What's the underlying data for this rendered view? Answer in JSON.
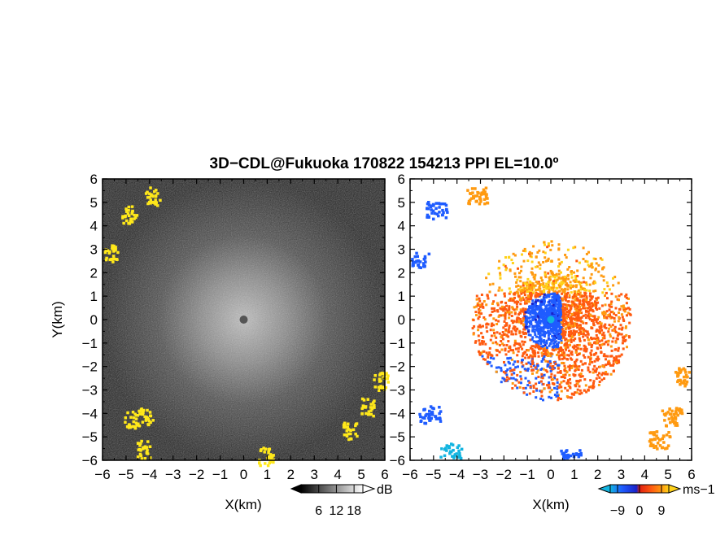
{
  "title": "3D−CDL@Fukuoka 170822 154213 PPI EL=10.0º",
  "chart_data": [
    {
      "type": "heatmap",
      "panel": "left",
      "xlabel": "X(km)",
      "ylabel": "Y(km)",
      "xlim": [
        -6,
        6
      ],
      "ylim": [
        -6,
        6
      ],
      "xticks": [
        "−6",
        "−5",
        "−4",
        "−3",
        "−2",
        "−1",
        "0",
        "1",
        "2",
        "3",
        "4",
        "5",
        "6"
      ],
      "yticks": [
        "−6",
        "−5",
        "−4",
        "−3",
        "−2",
        "−1",
        "0",
        "1",
        "2",
        "3",
        "4",
        "5",
        "6"
      ],
      "colorbar": {
        "unit": "dB",
        "ticks": [
          "6",
          "12",
          "18"
        ],
        "range": [
          0,
          21
        ],
        "palette": "grayscale"
      },
      "highlight_color": "#ffe81a",
      "strong_echo_patches_km": [
        {
          "x": -5.7,
          "y": 2.9
        },
        {
          "x": -4.9,
          "y": 4.5
        },
        {
          "x": -3.9,
          "y": 5.3
        },
        {
          "x": -4.3,
          "y": -5.5
        },
        {
          "x": -4.8,
          "y": -4.2
        },
        {
          "x": -4.2,
          "y": -4.1
        },
        {
          "x": 0.9,
          "y": -5.8
        },
        {
          "x": 4.5,
          "y": -4.7
        },
        {
          "x": 5.2,
          "y": -3.7
        },
        {
          "x": 5.8,
          "y": -2.6
        }
      ]
    },
    {
      "type": "heatmap",
      "panel": "right",
      "xlabel": "X(km)",
      "xlim": [
        -6,
        6
      ],
      "ylim": [
        -6,
        6
      ],
      "xticks": [
        "−6",
        "−5",
        "−4",
        "−3",
        "−2",
        "−1",
        "0",
        "1",
        "2",
        "3",
        "4",
        "5",
        "6"
      ],
      "yticks": [
        "−6",
        "−5",
        "−4",
        "−3",
        "−2",
        "−1",
        "0",
        "1",
        "2",
        "3",
        "4",
        "5",
        "6"
      ],
      "colorbar": {
        "unit": "ms−1",
        "ticks": [
          "−9",
          "0",
          "9"
        ],
        "range": [
          -12,
          12
        ],
        "colors": [
          "#12b4e0",
          "#1f5cff",
          "#1a22c8",
          "#e02010",
          "#ff5a10",
          "#ff9a10",
          "#ffd21a"
        ]
      },
      "velocity_regions_km": [
        {
          "x": -3.2,
          "y": 5.3,
          "value": 6
        },
        {
          "x": -4.9,
          "y": 4.7,
          "value": -8
        },
        {
          "x": -5.7,
          "y": 2.6,
          "value": -8
        },
        {
          "x": -5.2,
          "y": -4.0,
          "value": -8
        },
        {
          "x": -4.3,
          "y": -5.6,
          "value": -11
        },
        {
          "x": 0.8,
          "y": -5.8,
          "value": -8
        },
        {
          "x": 5.7,
          "y": -2.4,
          "value": 6
        },
        {
          "x": 5.1,
          "y": -4.1,
          "value": 6
        },
        {
          "x": 4.6,
          "y": -5.1,
          "value": 6
        }
      ]
    }
  ]
}
